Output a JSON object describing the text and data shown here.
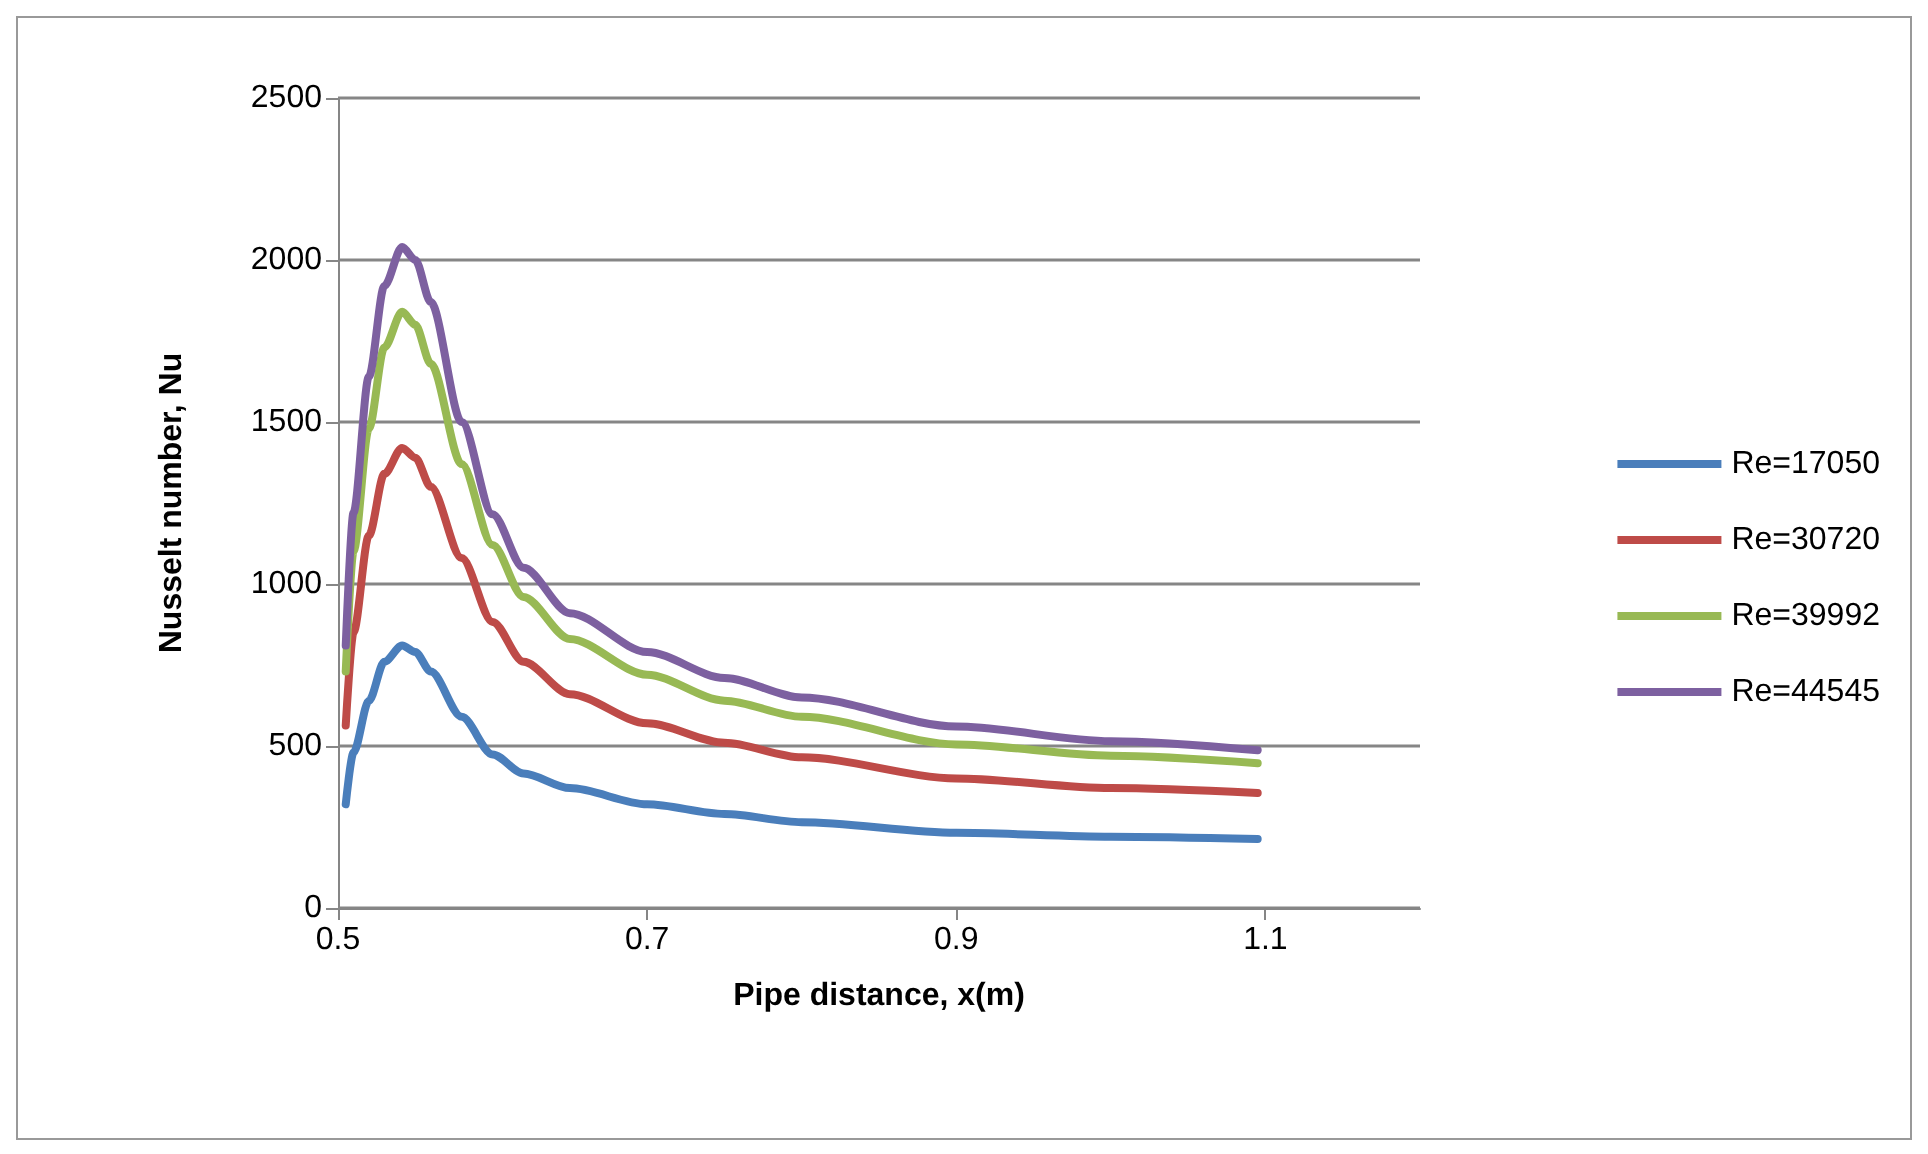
{
  "chart_data": {
    "type": "line",
    "xlabel": "Pipe distance, x(m)",
    "ylabel": "Nusselt number, Nu",
    "x": [
      0.505,
      0.51,
      0.52,
      0.53,
      0.5415,
      0.55,
      0.56,
      0.58,
      0.6,
      0.62,
      0.65,
      0.7,
      0.75,
      0.8,
      0.9,
      1.0,
      1.095
    ],
    "series": [
      {
        "name": "Re=17050",
        "color": "#4a7ebb",
        "values": [
          320,
          480,
          640,
          760,
          810,
          790,
          730,
          590,
          474,
          415,
          370,
          320,
          290,
          265,
          232,
          220,
          213
        ]
      },
      {
        "name": "Re=30720",
        "color": "#be4b48",
        "values": [
          563,
          850,
          1150,
          1340,
          1420,
          1390,
          1300,
          1080,
          883,
          760,
          660,
          570,
          510,
          465,
          400,
          370,
          355
        ]
      },
      {
        "name": "Re=39992",
        "color": "#98b954",
        "values": [
          730,
          1100,
          1480,
          1730,
          1840,
          1800,
          1680,
          1370,
          1120,
          960,
          830,
          720,
          640,
          590,
          505,
          470,
          447
        ]
      },
      {
        "name": "Re=44545",
        "color": "#7d60a0",
        "values": [
          810,
          1220,
          1640,
          1920,
          2040,
          2000,
          1870,
          1500,
          1215,
          1050,
          910,
          790,
          710,
          650,
          560,
          515,
          487
        ]
      }
    ],
    "xlim": [
      0.5,
      1.2
    ],
    "xticks": [
      0.5,
      0.7,
      0.9,
      1.1
    ],
    "ylim": [
      0,
      2500
    ],
    "yticks": [
      0,
      500,
      1000,
      1500,
      2000,
      2500
    ],
    "grid": "y",
    "legend": "right",
    "marker": "none",
    "line_style": "solid"
  }
}
